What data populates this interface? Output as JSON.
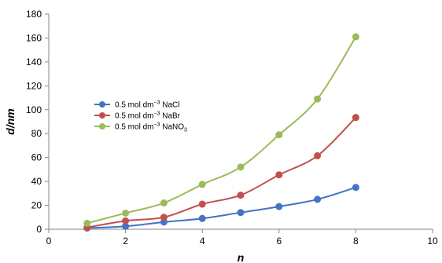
{
  "chart_data": {
    "type": "line",
    "xlabel": "n",
    "ylabel": "d/nm",
    "xlim": [
      0,
      10
    ],
    "ylim": [
      0,
      180
    ],
    "xticks": [
      "0",
      "2",
      "4",
      "6",
      "8",
      "10"
    ],
    "yticks": [
      "0",
      "20",
      "40",
      "60",
      "80",
      "100",
      "120",
      "140",
      "160",
      "180"
    ],
    "grid": false,
    "legend": "center-left",
    "series": [
      {
        "name": "0.5 mol dm−3 NaCl",
        "name_base": "0.5 mol dm",
        "name_sup": "−3",
        "name_rest": " NaCl",
        "name_sub": "",
        "color": "#4472c4",
        "x": [
          1,
          2,
          3,
          4,
          5,
          6,
          7,
          8
        ],
        "y": [
          1,
          2.5,
          6,
          9,
          14,
          19,
          25,
          35
        ]
      },
      {
        "name": "0.5 mol dm−3 NaBr",
        "name_base": "0.5 mol dm",
        "name_sup": "−3",
        "name_rest": " NaBr",
        "name_sub": "",
        "color": "#c0504d",
        "x": [
          1,
          2,
          3,
          4,
          5,
          6,
          7,
          8
        ],
        "y": [
          1.5,
          7,
          10,
          21,
          28.5,
          45.5,
          61.5,
          93.5
        ]
      },
      {
        "name": "0.5 mol dm−3 NaNO3",
        "name_base": "0.5 mol dm",
        "name_sup": "−3",
        "name_rest": " NaNO",
        "name_sub": "3",
        "color": "#9bbb59",
        "x": [
          1,
          2,
          3,
          4,
          5,
          6,
          7,
          8
        ],
        "y": [
          5,
          13.5,
          22,
          37.5,
          52,
          79,
          109,
          161
        ]
      }
    ]
  }
}
